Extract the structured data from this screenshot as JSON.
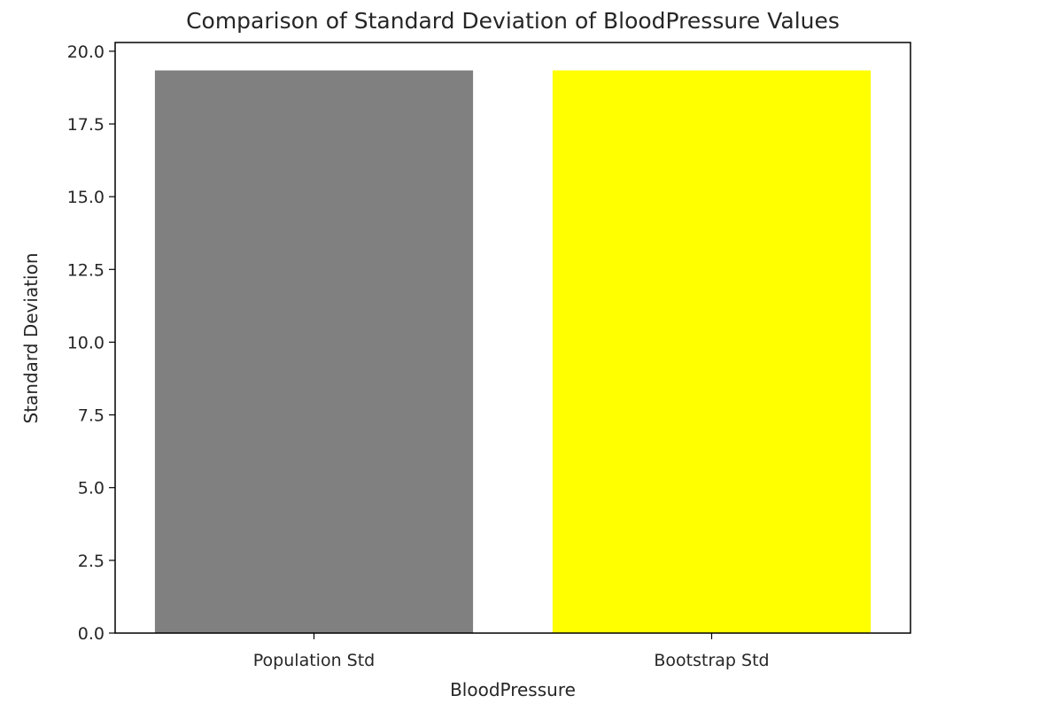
{
  "chart_data": {
    "type": "bar",
    "title": "Comparison of Standard Deviation of BloodPressure Values",
    "xlabel": "BloodPressure",
    "ylabel": "Standard Deviation",
    "categories": [
      "Population Std",
      "Bootstrap Std"
    ],
    "values": [
      19.34,
      19.34
    ],
    "colors": [
      "#808080",
      "#ffff00"
    ],
    "ylim": [
      0,
      20.3
    ],
    "yticks": [
      0.0,
      2.5,
      5.0,
      7.5,
      10.0,
      12.5,
      15.0,
      17.5,
      20.0
    ],
    "ytick_labels": [
      "0.0",
      "2.5",
      "5.0",
      "7.5",
      "10.0",
      "12.5",
      "15.0",
      "17.5",
      "20.0"
    ],
    "grid": false,
    "legend": "none"
  }
}
